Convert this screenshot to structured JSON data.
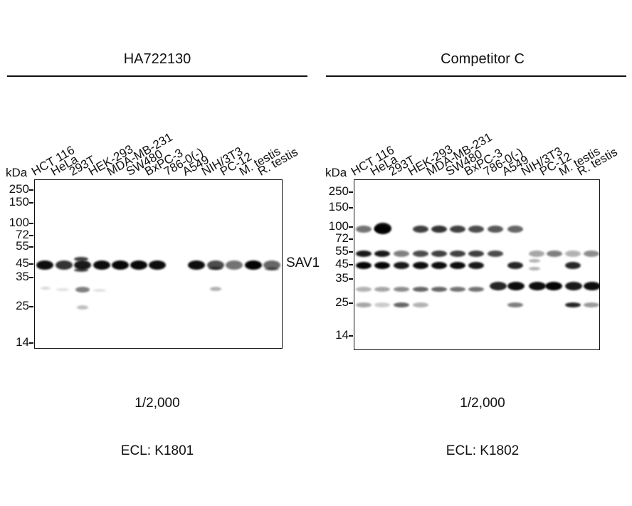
{
  "panels": [
    {
      "title": "HA722130",
      "lanes": [
        "HCT 116",
        "HeLa",
        "293T",
        "HEK-293",
        "MDA-MB-231",
        "SW480",
        "BxPC-3",
        "786-0(-)",
        "A549",
        "NIH/3T3",
        "PC-12",
        "M. testis",
        "R. testis"
      ],
      "kda_label": "kDa",
      "markers": [
        "250",
        "150",
        "100",
        "72",
        "55",
        "45",
        "35",
        "25",
        "14"
      ],
      "target_label": "SAV1",
      "dilution": "1/2,000",
      "ecl": "ECL: K1801"
    },
    {
      "title": "Competitor C",
      "lanes": [
        "HCT 116",
        "HeLa",
        "293T",
        "HEK-293",
        "MDA-MB-231",
        "SW480",
        "BxPC-3",
        "786-0(-)",
        "A549",
        "NIH/3T3",
        "PC-12",
        "M. testis",
        "R. testis"
      ],
      "kda_label": "kDa",
      "markers": [
        "250",
        "150",
        "100",
        "72",
        "55",
        "45",
        "35",
        "25",
        "14"
      ],
      "target_label": "",
      "dilution": "1/2,000",
      "ecl": "ECL: K1802"
    }
  ]
}
